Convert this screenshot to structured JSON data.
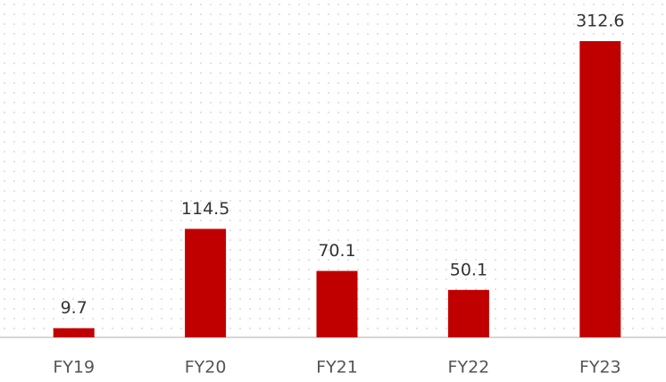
{
  "chart_data": {
    "type": "bar",
    "categories": [
      "FY19",
      "FY20",
      "FY21",
      "FY22",
      "FY23"
    ],
    "values": [
      9.7,
      114.5,
      70.1,
      50.1,
      312.6
    ],
    "color": "#c00000",
    "ylim": [
      0,
      356
    ]
  }
}
